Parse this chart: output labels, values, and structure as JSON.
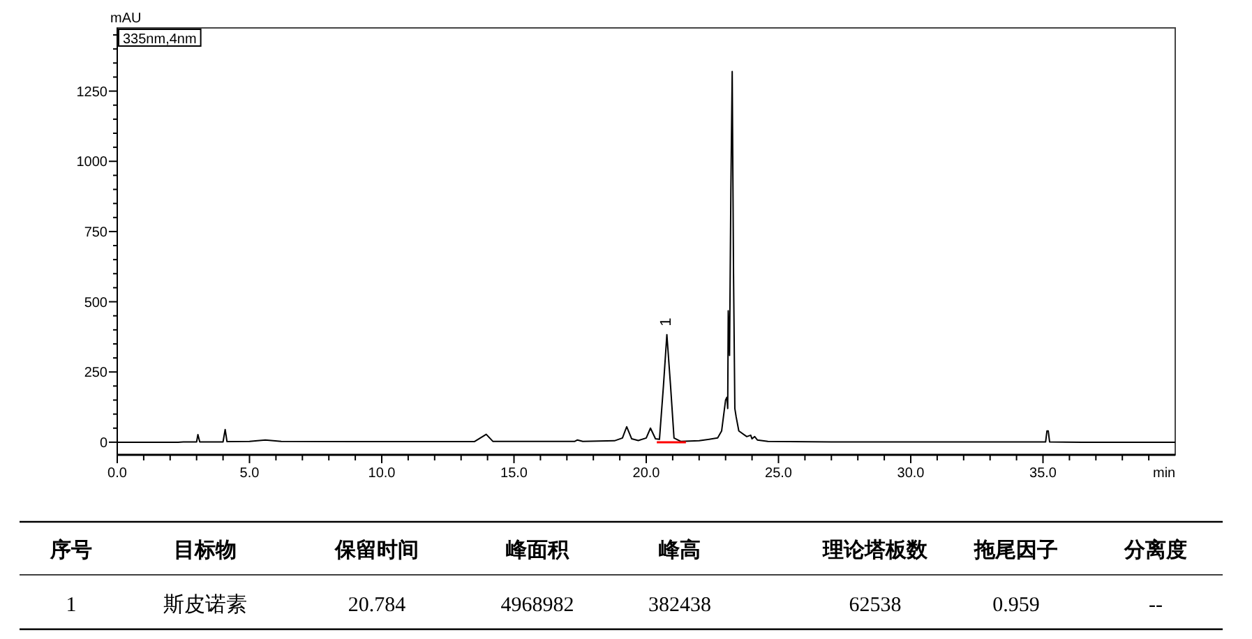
{
  "chart_data": [
    {
      "type": "line",
      "ylabel": "mAU",
      "xlabel": "min",
      "xlim": [
        0,
        40
      ],
      "ylim": [
        -45,
        1475
      ],
      "legend": "top left",
      "line_style": "solid",
      "marker": "none",
      "xticks": [
        {
          "value": 0,
          "label": "0.0"
        },
        {
          "value": 1,
          "label": null
        },
        {
          "value": 2,
          "label": null
        },
        {
          "value": 3,
          "label": null
        },
        {
          "value": 4,
          "label": null
        },
        {
          "value": 5,
          "label": "5.0"
        },
        {
          "value": 6,
          "label": null
        },
        {
          "value": 7,
          "label": null
        },
        {
          "value": 8,
          "label": null
        },
        {
          "value": 9,
          "label": null
        },
        {
          "value": 10,
          "label": "10.0"
        },
        {
          "value": 11,
          "label": null
        },
        {
          "value": 12,
          "label": null
        },
        {
          "value": 13,
          "label": null
        },
        {
          "value": 14,
          "label": null
        },
        {
          "value": 15,
          "label": "15.0"
        },
        {
          "value": 16,
          "label": null
        },
        {
          "value": 17,
          "label": null
        },
        {
          "value": 18,
          "label": null
        },
        {
          "value": 19,
          "label": null
        },
        {
          "value": 20,
          "label": "20.0"
        },
        {
          "value": 21,
          "label": null
        },
        {
          "value": 22,
          "label": null
        },
        {
          "value": 23,
          "label": null
        },
        {
          "value": 24,
          "label": null
        },
        {
          "value": 25,
          "label": "25.0"
        },
        {
          "value": 26,
          "label": null
        },
        {
          "value": 27,
          "label": null
        },
        {
          "value": 28,
          "label": null
        },
        {
          "value": 29,
          "label": null
        },
        {
          "value": 30,
          "label": "30.0"
        },
        {
          "value": 31,
          "label": null
        },
        {
          "value": 32,
          "label": null
        },
        {
          "value": 33,
          "label": null
        },
        {
          "value": 34,
          "label": null
        },
        {
          "value": 35,
          "label": "35.0"
        },
        {
          "value": 36,
          "label": null
        },
        {
          "value": 37,
          "label": null
        },
        {
          "value": 38,
          "label": null
        },
        {
          "value": 39,
          "label": null
        }
      ],
      "yticks": [
        0,
        {
          "value": 50,
          "label": null
        },
        {
          "value": 100,
          "label": null
        },
        {
          "value": 150,
          "label": null
        },
        {
          "value": 200,
          "label": null
        },
        250,
        {
          "value": 300,
          "label": null
        },
        {
          "value": 350,
          "label": null
        },
        {
          "value": 400,
          "label": null
        },
        {
          "value": 450,
          "label": null
        },
        500,
        {
          "value": 550,
          "label": null
        },
        {
          "value": 600,
          "label": null
        },
        {
          "value": 650,
          "label": null
        },
        {
          "value": 700,
          "label": null
        },
        750,
        {
          "value": 800,
          "label": null
        },
        {
          "value": 850,
          "label": null
        },
        {
          "value": 900,
          "label": null
        },
        {
          "value": 950,
          "label": null
        },
        1000,
        {
          "value": 1050,
          "label": null
        },
        {
          "value": 1100,
          "label": null
        },
        {
          "value": 1150,
          "label": null
        },
        {
          "value": 1200,
          "label": null
        },
        1250,
        {
          "value": 1300,
          "label": null
        },
        {
          "value": 1350,
          "label": null
        },
        {
          "value": 1400,
          "label": null
        },
        {
          "value": 1450,
          "label": null
        }
      ],
      "annotations": [
        {
          "text": "1",
          "x": 20.78,
          "y": 383
        }
      ],
      "series": [
        {
          "name": "335nm,4nm",
          "color": "#000000",
          "x": [
            0,
            2.3,
            2.5,
            3.0,
            3.05,
            3.12,
            4.0,
            4.08,
            4.15,
            5.0,
            5.6,
            6.2,
            9.5,
            13.5,
            13.95,
            14.2,
            16.0,
            17.3,
            17.4,
            17.6,
            18.8,
            19.1,
            19.26,
            19.45,
            19.7,
            20.0,
            20.16,
            20.35,
            20.5,
            20.65,
            20.78,
            20.92,
            21.05,
            21.3,
            22.0,
            22.7,
            22.85,
            23.0,
            23.05,
            23.08,
            23.1,
            23.15,
            23.2,
            23.25,
            23.3,
            23.35,
            23.4,
            23.5,
            23.8,
            23.95,
            24.0,
            24.1,
            24.2,
            24.6,
            27,
            30,
            35.1,
            35.15,
            35.2,
            35.25,
            36.5,
            40
          ],
          "values": [
            0,
            0,
            1,
            1,
            27,
            1,
            1,
            45,
            2,
            3,
            8,
            3,
            2,
            2,
            28,
            3,
            3,
            3,
            8,
            3,
            5,
            15,
            55,
            12,
            6,
            15,
            50,
            12,
            10,
            200,
            383,
            200,
            15,
            3,
            5,
            15,
            40,
            150,
            160,
            120,
            468,
            309,
            900,
            1320,
            600,
            120,
            90,
            40,
            20,
            25,
            12,
            20,
            8,
            3,
            1,
            1,
            1,
            40,
            40,
            1,
            0,
            0
          ]
        },
        {
          "color": "#ff0000",
          "x": [
            20.4,
            21.5
          ],
          "values": [
            0,
            0
          ]
        }
      ]
    },
    {
      "type": "other",
      "categories": [
        "序号",
        "目标物",
        "保留时间",
        "峰面积",
        "峰高",
        "理论塔板数",
        "拖尾因子",
        "分离度"
      ],
      "annotations": [
        "1",
        "斯皮诺素",
        "20.784",
        "4968982",
        "382438",
        "62538",
        "0.959",
        "--"
      ]
    }
  ]
}
